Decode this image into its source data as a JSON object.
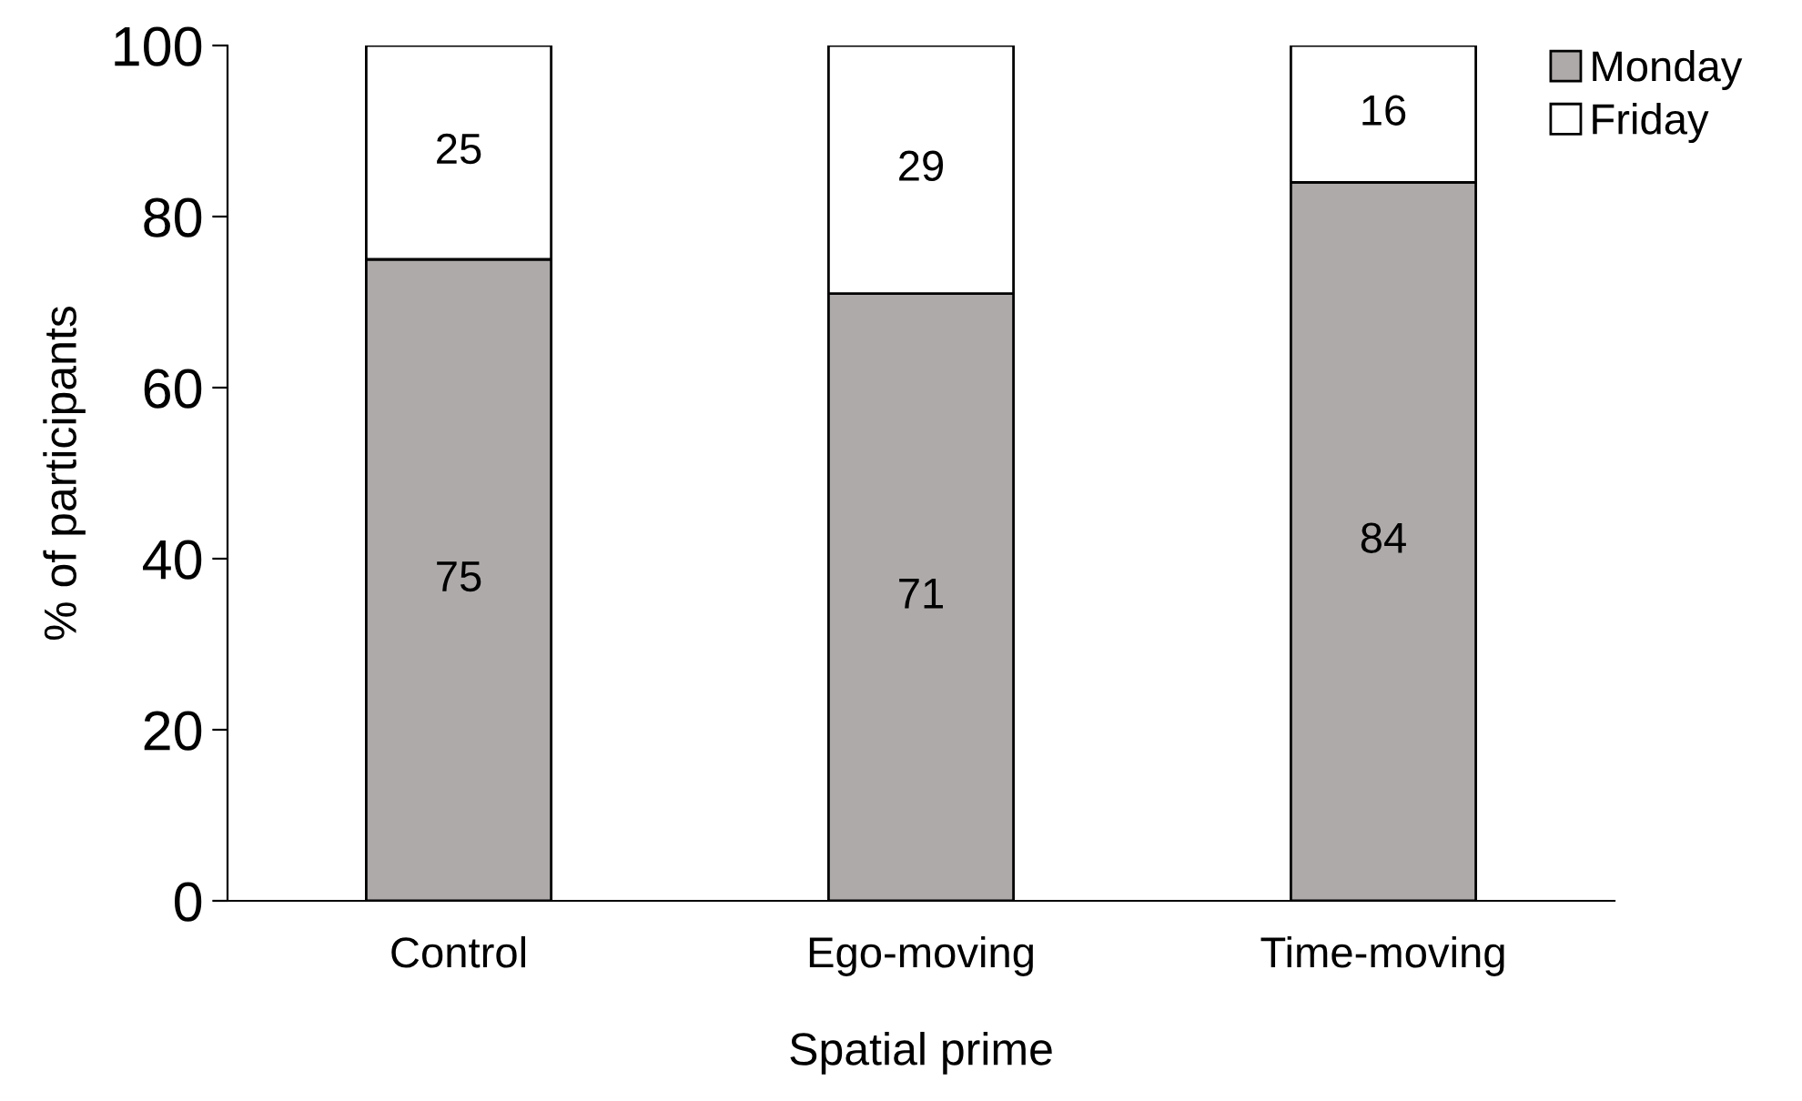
{
  "chart_data": {
    "type": "bar",
    "stacked": true,
    "xlabel": "Spatial prime",
    "ylabel": "% of participants",
    "categories": [
      "Control",
      "Ego-moving",
      "Time-moving"
    ],
    "series": [
      {
        "name": "Monday",
        "color": "#aeaaaa",
        "values": [
          75,
          71,
          84
        ]
      },
      {
        "name": "Friday",
        "color": "#ffffff",
        "values": [
          25,
          29,
          16
        ]
      }
    ],
    "ylim": [
      0,
      100
    ],
    "yticks": [
      0,
      20,
      40,
      60,
      80,
      100
    ],
    "data_labels": true,
    "legend": "top right",
    "grid": false
  }
}
